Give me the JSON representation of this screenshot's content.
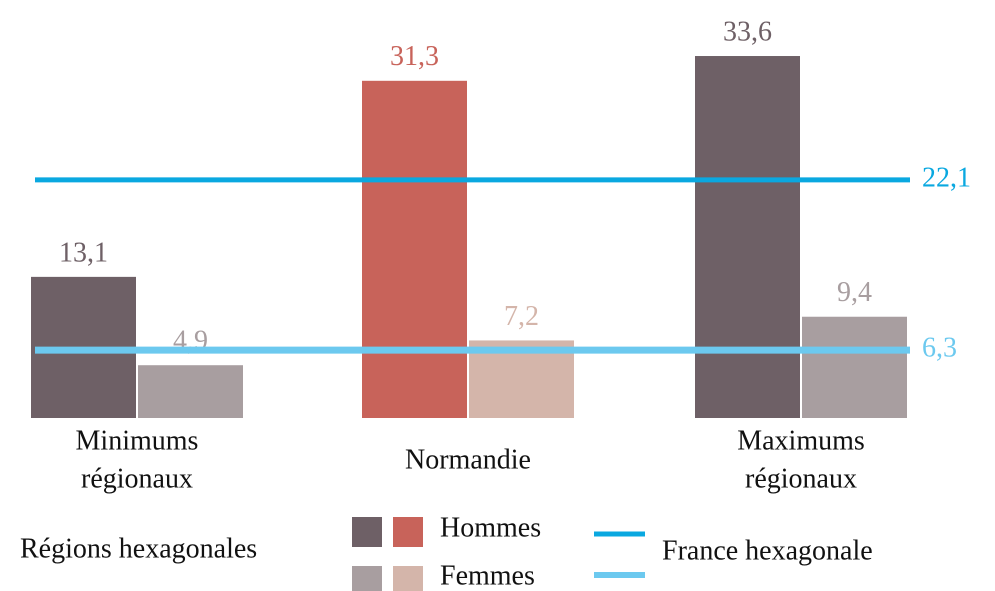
{
  "chart_data": {
    "type": "bar",
    "categories": [
      [
        "Minimums",
        "régionaux"
      ],
      [
        "Normandie"
      ],
      [
        "Maximums",
        "régionaux"
      ]
    ],
    "series": [
      {
        "name": "Hommes",
        "colors": [
          "#6e6066",
          "#c8635a",
          "#6e6066"
        ],
        "values": [
          13.1,
          31.3,
          33.6
        ],
        "value_labels": [
          "13,1",
          "31,3",
          "33,6"
        ]
      },
      {
        "name": "Femmes",
        "colors": [
          "#a89ea0",
          "#d4b5aa",
          "#a89ea0"
        ],
        "values": [
          4.9,
          7.2,
          9.4
        ],
        "value_labels": [
          "4,9",
          "7,2",
          "9,4"
        ]
      }
    ],
    "reference_lines": {
      "name": "France hexagonale",
      "lines": [
        {
          "value": 22.1,
          "label": "22,1",
          "color": "#0aa8e0"
        },
        {
          "value": 6.3,
          "label": "6,3",
          "color": "#6cc9ef"
        }
      ]
    },
    "legend_label": "Régions hexagonales",
    "ylim": [
      0,
      38.8
    ]
  }
}
